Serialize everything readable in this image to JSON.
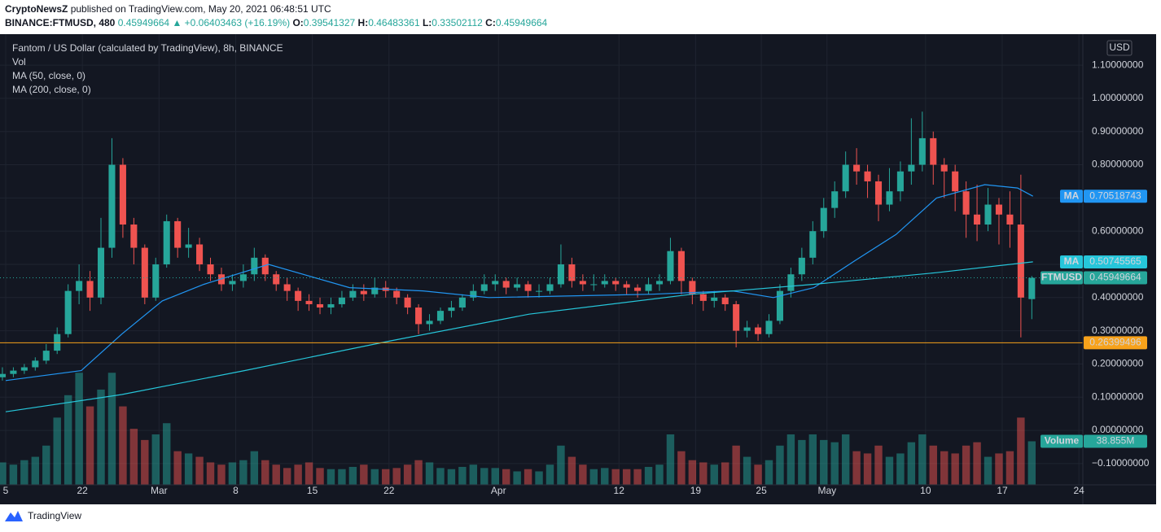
{
  "header": {
    "author": "CryptoNewsZ",
    "published": "published on TradingView.com, May 20, 2021 06:48:51 UTC",
    "symbol": "BINANCE:FTMUSD, 480",
    "last": "0.45949664",
    "change": "▲ +0.06403463 (+16.19%)",
    "ohlc": [
      {
        "label": "O:",
        "value": "0.39541327"
      },
      {
        "label": "H:",
        "value": "0.46483361"
      },
      {
        "label": "L:",
        "value": "0.33502112"
      },
      {
        "label": "C:",
        "value": "0.45949664"
      }
    ]
  },
  "footer": "TradingView",
  "chart_data": {
    "type": "candlestick",
    "title": "Fantom / US Dollar (calculated by TradingView), 8h, BINANCE",
    "currency": "USD",
    "symbol_tag": "FTMUSD",
    "up_color": "#26a69a",
    "down_color": "#ef5350",
    "grid": true,
    "xlim": [
      -0.52,
      98.36
    ],
    "xticks": [
      {
        "value": 0,
        "label": "5"
      },
      {
        "value": 7,
        "label": "22"
      },
      {
        "value": 14,
        "label": "Mar"
      },
      {
        "value": 21,
        "label": "8"
      },
      {
        "value": 28,
        "label": "15"
      },
      {
        "value": 35,
        "label": "22"
      },
      {
        "value": 45,
        "label": "Apr"
      },
      {
        "value": 56,
        "label": "12"
      },
      {
        "value": 63,
        "label": "19"
      },
      {
        "value": 69,
        "label": "25"
      },
      {
        "value": 75,
        "label": "May"
      },
      {
        "value": 84,
        "label": "10"
      },
      {
        "value": 91,
        "label": "17"
      },
      {
        "value": 98,
        "label": "24"
      }
    ],
    "ylim": [
      -0.164,
      1.186
    ],
    "yticks": [
      {
        "value": 1.1,
        "label": "1.10000000"
      },
      {
        "value": 1.0,
        "label": "1.00000000"
      },
      {
        "value": 0.9,
        "label": "0.90000000"
      },
      {
        "value": 0.8,
        "label": "0.80000000"
      },
      {
        "value": 0.7,
        "label": "0.70000000"
      },
      {
        "value": 0.6,
        "label": "0.60000000"
      },
      {
        "value": 0.5,
        "label": "0.50000000"
      },
      {
        "value": 0.4,
        "label": "0.40000000"
      },
      {
        "value": 0.3,
        "label": "0.30000000"
      },
      {
        "value": 0.2,
        "label": "0.20000000"
      },
      {
        "value": 0.1,
        "label": "0.10000000"
      },
      {
        "value": 0,
        "label": "0.00000000"
      },
      {
        "value": -0.1,
        "label": "−0.10000000"
      }
    ],
    "open": [
      0.16,
      0.17,
      0.18,
      0.19,
      0.21,
      0.24,
      0.29,
      0.42,
      0.45,
      0.4,
      0.55,
      0.8,
      0.62,
      0.55,
      0.4,
      0.5,
      0.63,
      0.55,
      0.56,
      0.5,
      0.47,
      0.44,
      0.45,
      0.47,
      0.52,
      0.47,
      0.44,
      0.42,
      0.39,
      0.38,
      0.37,
      0.38,
      0.4,
      0.42,
      0.41,
      0.43,
      0.42,
      0.4,
      0.37,
      0.32,
      0.33,
      0.36,
      0.37,
      0.4,
      0.42,
      0.44,
      0.45,
      0.43,
      0.44,
      0.42,
      0.42,
      0.44,
      0.5,
      0.45,
      0.44,
      0.44,
      0.45,
      0.44,
      0.43,
      0.42,
      0.44,
      0.45,
      0.54,
      0.45,
      0.41,
      0.39,
      0.4,
      0.38,
      0.3,
      0.31,
      0.29,
      0.33,
      0.42,
      0.47,
      0.52,
      0.6,
      0.67,
      0.72,
      0.8,
      0.78,
      0.75,
      0.68,
      0.72,
      0.78,
      0.8,
      0.88,
      0.8,
      0.78,
      0.72,
      0.65,
      0.62,
      0.68,
      0.65,
      0.62,
      0.39541327
    ],
    "high": [
      0.19,
      0.19,
      0.2,
      0.22,
      0.26,
      0.31,
      0.44,
      0.5,
      0.48,
      0.64,
      0.88,
      0.82,
      0.64,
      0.56,
      0.52,
      0.65,
      0.64,
      0.61,
      0.58,
      0.52,
      0.49,
      0.47,
      0.5,
      0.55,
      0.53,
      0.48,
      0.46,
      0.43,
      0.41,
      0.4,
      0.4,
      0.42,
      0.44,
      0.44,
      0.46,
      0.45,
      0.43,
      0.41,
      0.38,
      0.35,
      0.37,
      0.39,
      0.41,
      0.44,
      0.47,
      0.47,
      0.46,
      0.46,
      0.45,
      0.44,
      0.46,
      0.56,
      0.52,
      0.47,
      0.47,
      0.47,
      0.46,
      0.45,
      0.44,
      0.46,
      0.47,
      0.58,
      0.55,
      0.46,
      0.42,
      0.42,
      0.41,
      0.39,
      0.33,
      0.32,
      0.35,
      0.44,
      0.49,
      0.55,
      0.63,
      0.7,
      0.75,
      0.84,
      0.85,
      0.8,
      0.77,
      0.79,
      0.81,
      0.94,
      0.96,
      0.9,
      0.82,
      0.8,
      0.75,
      0.74,
      0.73,
      0.7,
      0.72,
      0.77,
      0.46483361
    ],
    "low": [
      0.15,
      0.16,
      0.17,
      0.18,
      0.2,
      0.23,
      0.28,
      0.38,
      0.36,
      0.38,
      0.52,
      0.58,
      0.5,
      0.38,
      0.39,
      0.49,
      0.52,
      0.52,
      0.48,
      0.45,
      0.42,
      0.42,
      0.43,
      0.45,
      0.45,
      0.42,
      0.39,
      0.36,
      0.36,
      0.35,
      0.35,
      0.37,
      0.39,
      0.39,
      0.4,
      0.4,
      0.38,
      0.35,
      0.29,
      0.3,
      0.32,
      0.34,
      0.36,
      0.39,
      0.41,
      0.42,
      0.41,
      0.42,
      0.4,
      0.4,
      0.41,
      0.43,
      0.43,
      0.42,
      0.42,
      0.43,
      0.42,
      0.41,
      0.4,
      0.41,
      0.42,
      0.44,
      0.41,
      0.38,
      0.36,
      0.37,
      0.36,
      0.25,
      0.28,
      0.27,
      0.28,
      0.32,
      0.4,
      0.45,
      0.5,
      0.58,
      0.64,
      0.7,
      0.74,
      0.7,
      0.63,
      0.66,
      0.69,
      0.74,
      0.78,
      0.74,
      0.7,
      0.66,
      0.58,
      0.57,
      0.6,
      0.56,
      0.55,
      0.28,
      0.33502112
    ],
    "close": [
      0.17,
      0.18,
      0.19,
      0.21,
      0.24,
      0.29,
      0.42,
      0.45,
      0.4,
      0.55,
      0.8,
      0.62,
      0.55,
      0.4,
      0.5,
      0.63,
      0.55,
      0.56,
      0.5,
      0.47,
      0.44,
      0.45,
      0.47,
      0.52,
      0.47,
      0.44,
      0.42,
      0.39,
      0.38,
      0.37,
      0.38,
      0.4,
      0.42,
      0.41,
      0.43,
      0.42,
      0.4,
      0.37,
      0.32,
      0.33,
      0.36,
      0.37,
      0.4,
      0.42,
      0.44,
      0.45,
      0.43,
      0.44,
      0.42,
      0.42,
      0.44,
      0.5,
      0.45,
      0.44,
      0.44,
      0.45,
      0.44,
      0.43,
      0.42,
      0.44,
      0.45,
      0.54,
      0.45,
      0.41,
      0.39,
      0.4,
      0.38,
      0.3,
      0.31,
      0.29,
      0.33,
      0.42,
      0.47,
      0.52,
      0.6,
      0.67,
      0.72,
      0.8,
      0.78,
      0.75,
      0.68,
      0.72,
      0.78,
      0.8,
      0.88,
      0.8,
      0.78,
      0.72,
      0.65,
      0.62,
      0.68,
      0.65,
      0.62,
      0.4,
      0.45949664
    ],
    "volume": {
      "name": "Vol",
      "tag": "Volume",
      "last_label": "38.855M",
      "ylim": [
        0,
        400
      ],
      "values": [
        20,
        18,
        22,
        25,
        35,
        60,
        80,
        100,
        70,
        85,
        100,
        70,
        50,
        40,
        45,
        55,
        30,
        28,
        25,
        20,
        18,
        20,
        22,
        30,
        22,
        18,
        15,
        18,
        20,
        15,
        14,
        14,
        16,
        18,
        14,
        14,
        15,
        18,
        22,
        20,
        15,
        14,
        16,
        18,
        15,
        15,
        14,
        12,
        14,
        12,
        18,
        35,
        25,
        18,
        14,
        15,
        14,
        14,
        14,
        16,
        18,
        45,
        30,
        22,
        20,
        18,
        20,
        35,
        25,
        18,
        22,
        35,
        45,
        40,
        45,
        40,
        38,
        45,
        30,
        28,
        35,
        25,
        28,
        38,
        45,
        35,
        30,
        28,
        35,
        38,
        25,
        28,
        30,
        60,
        38.855
      ]
    },
    "series": [
      {
        "name": "MA (50, close, 0)",
        "tag": "MA",
        "color": "#2196f3",
        "x": [
          0,
          6.9,
          10.6,
          14.3,
          18.1,
          24,
          31.4,
          38.1,
          44.1,
          59,
          66.4,
          70.1,
          73.8,
          77.5,
          81.3,
          85,
          89.4,
          92.4,
          93.8
        ],
        "values": [
          0.15,
          0.18,
          0.29,
          0.39,
          0.44,
          0.5,
          0.43,
          0.42,
          0.4,
          0.41,
          0.42,
          0.4,
          0.43,
          0.51,
          0.59,
          0.7,
          0.74,
          0.73,
          0.70518743
        ]
      },
      {
        "name": "MA (200, close, 0)",
        "tag": "MA",
        "color": "#26c6da",
        "x": [
          0,
          10.6,
          21.8,
          35.2,
          47.8,
          62.7,
          73.8,
          85,
          93.8
        ],
        "values": [
          0.056,
          0.108,
          0.18,
          0.27,
          0.35,
          0.41,
          0.44,
          0.475,
          0.50745565
        ]
      }
    ],
    "hline": {
      "value": 0.26399496,
      "color": "#f7a21b"
    }
  }
}
